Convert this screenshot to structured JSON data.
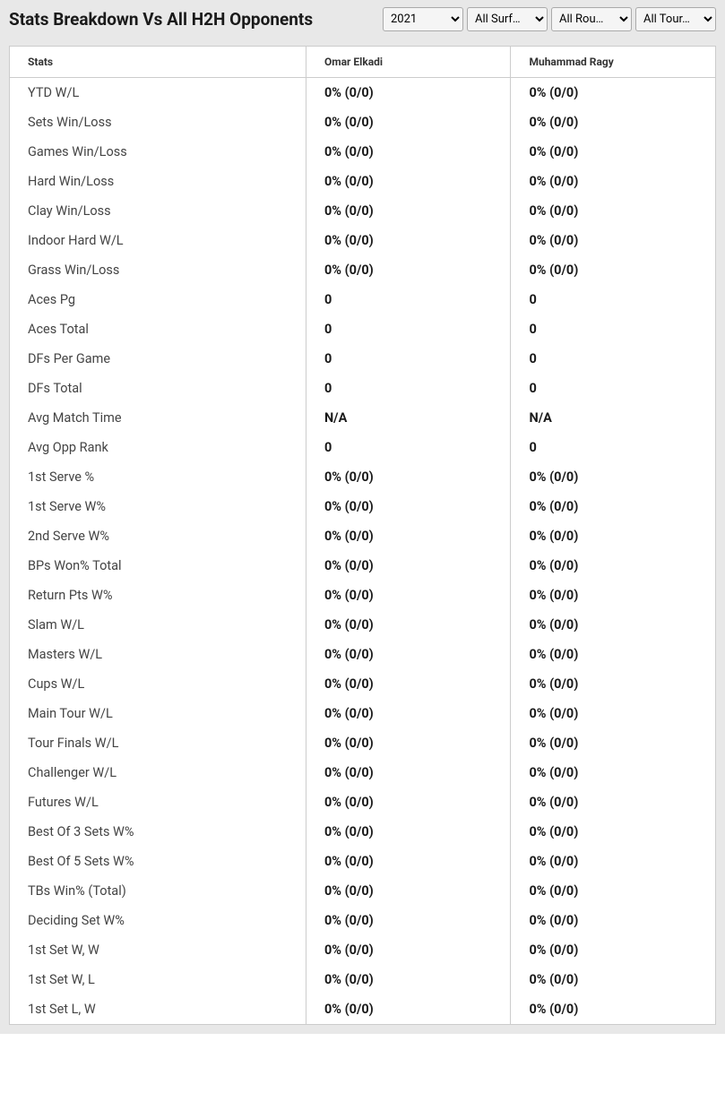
{
  "header": {
    "title": "Stats Breakdown Vs All H2H Opponents"
  },
  "filters": {
    "year": {
      "selected": "2021",
      "options": [
        "2021"
      ]
    },
    "surface": {
      "selected": "All Surf…",
      "options": [
        "All Surf…"
      ]
    },
    "round": {
      "selected": "All Rou…",
      "options": [
        "All Rou…"
      ]
    },
    "tour": {
      "selected": "All Tour…",
      "options": [
        "All Tour…"
      ]
    }
  },
  "table": {
    "columns": [
      "Stats",
      "Omar Elkadi",
      "Muhammad Ragy"
    ],
    "rows": [
      {
        "stat": "YTD W/L",
        "p1": "0% (0/0)",
        "p2": "0% (0/0)"
      },
      {
        "stat": "Sets Win/Loss",
        "p1": "0% (0/0)",
        "p2": "0% (0/0)"
      },
      {
        "stat": "Games Win/Loss",
        "p1": "0% (0/0)",
        "p2": "0% (0/0)"
      },
      {
        "stat": "Hard Win/Loss",
        "p1": "0% (0/0)",
        "p2": "0% (0/0)"
      },
      {
        "stat": "Clay Win/Loss",
        "p1": "0% (0/0)",
        "p2": "0% (0/0)"
      },
      {
        "stat": "Indoor Hard W/L",
        "p1": "0% (0/0)",
        "p2": "0% (0/0)"
      },
      {
        "stat": "Grass Win/Loss",
        "p1": "0% (0/0)",
        "p2": "0% (0/0)"
      },
      {
        "stat": "Aces Pg",
        "p1": "0",
        "p2": "0"
      },
      {
        "stat": "Aces Total",
        "p1": "0",
        "p2": "0"
      },
      {
        "stat": "DFs Per Game",
        "p1": "0",
        "p2": "0"
      },
      {
        "stat": "DFs Total",
        "p1": "0",
        "p2": "0"
      },
      {
        "stat": "Avg Match Time",
        "p1": "N/A",
        "p2": "N/A"
      },
      {
        "stat": "Avg Opp Rank",
        "p1": "0",
        "p2": "0"
      },
      {
        "stat": "1st Serve %",
        "p1": "0% (0/0)",
        "p2": "0% (0/0)"
      },
      {
        "stat": "1st Serve W%",
        "p1": "0% (0/0)",
        "p2": "0% (0/0)"
      },
      {
        "stat": "2nd Serve W%",
        "p1": "0% (0/0)",
        "p2": "0% (0/0)"
      },
      {
        "stat": "BPs Won% Total",
        "p1": "0% (0/0)",
        "p2": "0% (0/0)"
      },
      {
        "stat": "Return Pts W%",
        "p1": "0% (0/0)",
        "p2": "0% (0/0)"
      },
      {
        "stat": "Slam W/L",
        "p1": "0% (0/0)",
        "p2": "0% (0/0)"
      },
      {
        "stat": "Masters W/L",
        "p1": "0% (0/0)",
        "p2": "0% (0/0)"
      },
      {
        "stat": "Cups W/L",
        "p1": "0% (0/0)",
        "p2": "0% (0/0)"
      },
      {
        "stat": "Main Tour W/L",
        "p1": "0% (0/0)",
        "p2": "0% (0/0)"
      },
      {
        "stat": "Tour Finals W/L",
        "p1": "0% (0/0)",
        "p2": "0% (0/0)"
      },
      {
        "stat": "Challenger W/L",
        "p1": "0% (0/0)",
        "p2": "0% (0/0)"
      },
      {
        "stat": "Futures W/L",
        "p1": "0% (0/0)",
        "p2": "0% (0/0)"
      },
      {
        "stat": "Best Of 3 Sets W%",
        "p1": "0% (0/0)",
        "p2": "0% (0/0)"
      },
      {
        "stat": "Best Of 5 Sets W%",
        "p1": "0% (0/0)",
        "p2": "0% (0/0)"
      },
      {
        "stat": "TBs Win% (Total)",
        "p1": "0% (0/0)",
        "p2": "0% (0/0)"
      },
      {
        "stat": "Deciding Set W%",
        "p1": "0% (0/0)",
        "p2": "0% (0/0)"
      },
      {
        "stat": "1st Set W, W",
        "p1": "0% (0/0)",
        "p2": "0% (0/0)"
      },
      {
        "stat": "1st Set W, L",
        "p1": "0% (0/0)",
        "p2": "0% (0/0)"
      },
      {
        "stat": "1st Set L, W",
        "p1": "0% (0/0)",
        "p2": "0% (0/0)"
      }
    ]
  },
  "styling": {
    "page_background": "#ffffff",
    "header_background": "#e8e8e8",
    "table_container_background": "#e8e8e8",
    "table_background": "#ffffff",
    "border_color": "#cccccc",
    "header_title_color": "#1a1a1a",
    "header_title_fontsize": 19,
    "column_header_fontsize": 12,
    "cell_fontsize": 14.5,
    "stat_label_color": "#444444",
    "value_color": "#1a1a1a",
    "value_weight": "bold"
  }
}
